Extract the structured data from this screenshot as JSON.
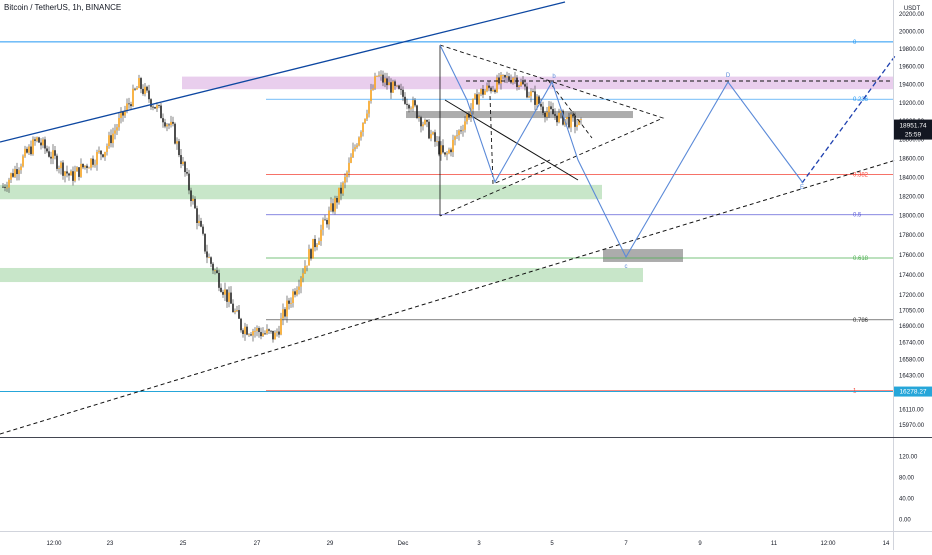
{
  "header": {
    "title": "Bitcoin / TetherUS, 1h, BINANCE"
  },
  "price_axis": {
    "currency": "USDT",
    "ticks": [
      "20200.00",
      "20000.00",
      "19800.00",
      "19600.00",
      "19400.00",
      "19200.00",
      "19000.00",
      "18800.00",
      "18600.00",
      "18400.00",
      "18200.00",
      "18000.00",
      "17800.00",
      "17600.00",
      "17400.00",
      "17200.00",
      "17050.00",
      "16900.00",
      "16740.00",
      "16580.00",
      "16430.00",
      "16270.00",
      "16110.00",
      "15970.00"
    ],
    "last_price_label": "18951.74",
    "countdown_label": "25:59",
    "low_price_label": "16278.27"
  },
  "indicator_axis": {
    "ticks": [
      "120.00",
      "80.00",
      "40.00",
      "0.00"
    ]
  },
  "time_axis": {
    "ticks": [
      "12:00",
      "23",
      "25",
      "27",
      "29",
      "Dec",
      "3",
      "5",
      "7",
      "9",
      "11",
      "12:00",
      "14"
    ]
  },
  "fib_levels": [
    {
      "label": "0",
      "price": 19880,
      "color": "#2196f3"
    },
    {
      "label": "0.236",
      "price": 19240,
      "color": "#2196f3"
    },
    {
      "label": "0.382",
      "price": 18430,
      "color": "#f44336"
    },
    {
      "label": "0.5",
      "price": 18010,
      "color": "#5f5fd8"
    },
    {
      "label": "0.618",
      "price": 17570,
      "color": "#4caf50"
    },
    {
      "label": "0.786",
      "price": 16960,
      "color": "#333333"
    },
    {
      "label": "1",
      "price": 16290,
      "color": "#f44336"
    }
  ],
  "pattern_points": [
    {
      "label": "b",
      "price": 19560
    },
    {
      "label": "c",
      "price": 17550
    },
    {
      "label": "D",
      "price": 19600
    },
    {
      "label": "E",
      "price": 18320
    }
  ],
  "chart_data": {
    "type": "candlestick",
    "title": "Bitcoin / TetherUS, 1h, BINANCE",
    "symbol": "BTC/USDT",
    "interval": "1h",
    "exchange": "BINANCE",
    "ylim": [
      15900,
      20250
    ],
    "y_scale": "log",
    "last_price": 18951.74,
    "x_ticks": [
      "12:00",
      "23",
      "25",
      "27",
      "29",
      "Dec",
      "3",
      "5",
      "7",
      "9",
      "11",
      "12:00",
      "14"
    ],
    "close_path": [
      {
        "x": "21 Nov",
        "close": 18300
      },
      {
        "x": "22 Nov",
        "close": 18800
      },
      {
        "x": "23 Nov",
        "close": 18400
      },
      {
        "x": "24 Nov",
        "close": 18700
      },
      {
        "x": "25 Nov",
        "close": 19400
      },
      {
        "x": "26 Nov",
        "close": 18900
      },
      {
        "x": "26 Nov",
        "close": 17600
      },
      {
        "x": "27 Nov",
        "close": 16900
      },
      {
        "x": "28 Nov",
        "close": 16800
      },
      {
        "x": "29 Nov",
        "close": 17600
      },
      {
        "x": "30 Nov",
        "close": 18300
      },
      {
        "x": "30 Nov",
        "close": 19500
      },
      {
        "x": "1 Dec",
        "close": 19200
      },
      {
        "x": "2 Dec",
        "close": 18600
      },
      {
        "x": "3 Dec",
        "close": 19300
      },
      {
        "x": "4 Dec",
        "close": 19500
      },
      {
        "x": "5 Dec",
        "close": 19100
      },
      {
        "x": "5 Dec",
        "close": 18951.74
      }
    ],
    "support_zones": [
      [
        18170,
        18320
      ],
      [
        17330,
        17470
      ]
    ],
    "resistance_zones": [
      [
        19350,
        19490
      ]
    ],
    "fib_retracement": [
      {
        "level": "0",
        "price": 19880
      },
      {
        "level": "0.236",
        "price": 19240
      },
      {
        "level": "0.382",
        "price": 18430
      },
      {
        "level": "0.5",
        "price": 18010
      },
      {
        "level": "0.618",
        "price": 17570
      },
      {
        "level": "0.786",
        "price": 16960
      },
      {
        "level": "1",
        "price": 16290
      }
    ],
    "projection": [
      {
        "label": "c",
        "price": 17550
      },
      {
        "label": "D",
        "price": 19600
      },
      {
        "label": "E",
        "price": 18320
      }
    ],
    "indicator_ylim": [
      -20,
      140
    ]
  }
}
